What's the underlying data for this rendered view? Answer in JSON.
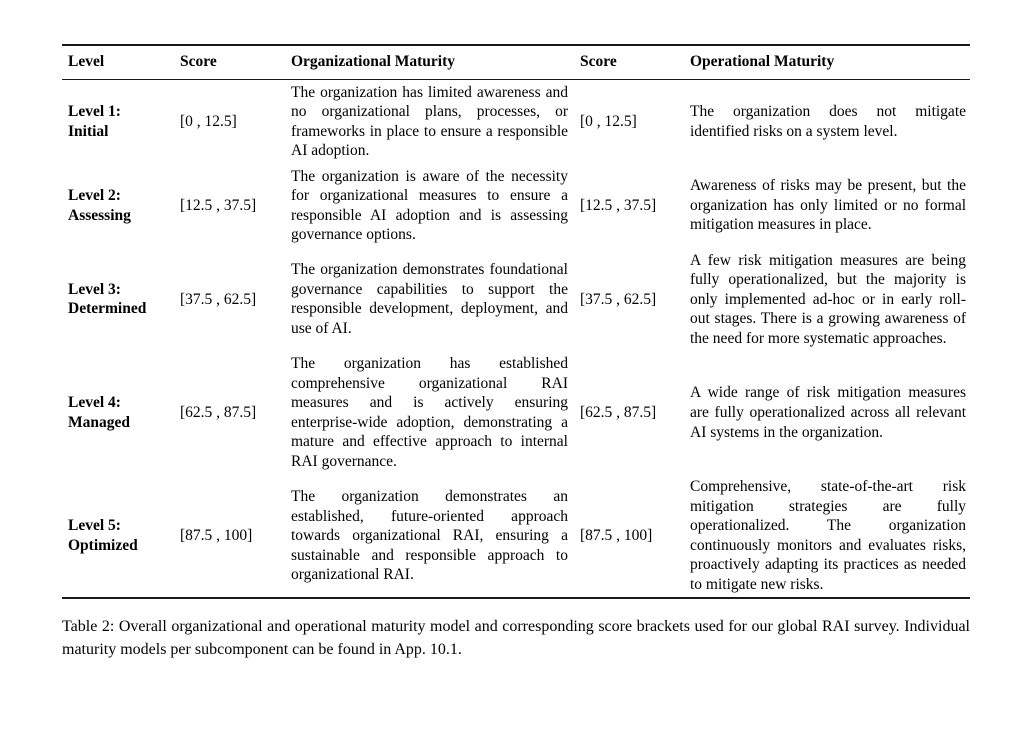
{
  "table": {
    "headers": [
      "Level",
      "Score",
      "Organizational Maturity",
      "Score",
      "Operational Maturity"
    ],
    "rows": [
      {
        "level_label": "Level 1:",
        "level_name": "Initial",
        "org_score": "[0 , 12.5]",
        "org_text": "The organization has limited awareness and no organizational plans, processes, or frameworks in place to ensure a responsible AI adoption.",
        "op_score": "[0 , 12.5]",
        "op_text": "The organization does not mitigate identified risks on a system level."
      },
      {
        "level_label": "Level 2:",
        "level_name": "Assessing",
        "org_score": "[12.5 , 37.5]",
        "org_text": "The organization is aware of the necessity for organizational measures to ensure a responsible AI adoption and is assessing governance options.",
        "op_score": "[12.5 , 37.5]",
        "op_text": "Awareness of risks may be present, but the organization has only limited or no formal mitigation measures in place."
      },
      {
        "level_label": "Level 3:",
        "level_name": "Determined",
        "org_score": "[37.5 , 62.5]",
        "org_text": "The organization demonstrates foundational governance capabilities to support the responsible development, deployment, and use of AI.",
        "op_score": "[37.5 , 62.5]",
        "op_text": "A few risk mitigation measures are being fully operationalized, but the majority is only implemented ad-hoc or in early roll-out stages. There is a growing awareness of the need for more systematic approaches."
      },
      {
        "level_label": "Level 4:",
        "level_name": "Managed",
        "org_score": "[62.5 , 87.5]",
        "org_text": "The organization has established comprehensive organizational RAI measures and is actively ensuring enterprise-wide adoption, demonstrating a mature and effective approach to internal RAI governance.",
        "op_score": "[62.5 , 87.5]",
        "op_text": "A wide range of risk mitigation measures are fully operationalized across all relevant AI systems in the organization."
      },
      {
        "level_label": "Level 5:",
        "level_name": "Optimized",
        "org_score": "[87.5 , 100]",
        "org_text": "The organization demonstrates an established, future-oriented approach towards organizational RAI, ensuring a sustainable and responsible approach to organizational RAI.",
        "op_score": "[87.5 , 100]",
        "op_text": "Comprehensive, state-of-the-art risk mitigation strategies are fully operationalized. The organization continuously monitors and evaluates risks, proactively adapting its practices as needed to mitigate new risks."
      }
    ]
  },
  "caption": "Table 2: Overall organizational and operational maturity model and corresponding score brackets used for our global RAI survey. Individual maturity models per subcomponent can be found in App. 10.1."
}
